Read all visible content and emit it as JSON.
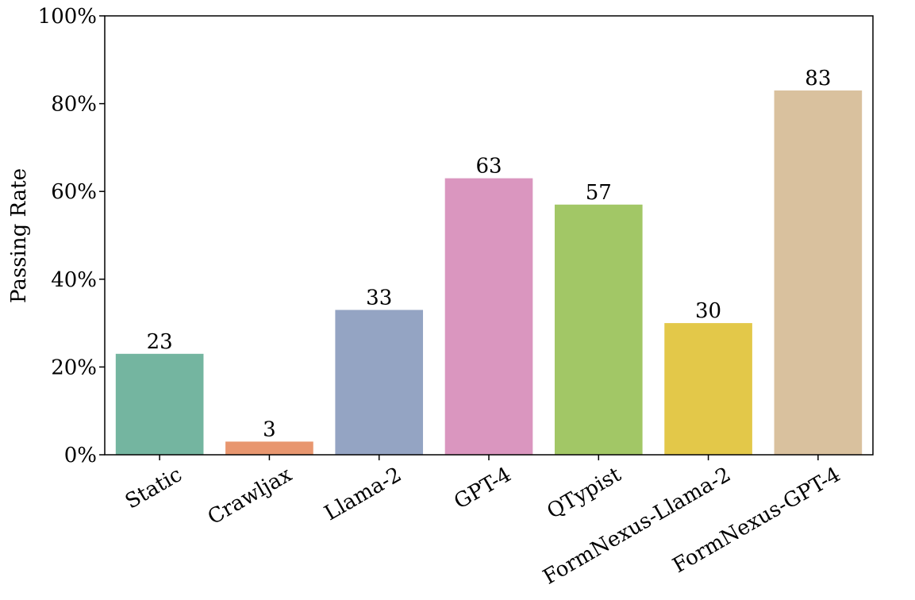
{
  "chart_data": {
    "type": "bar",
    "ylabel": "Passing Rate",
    "categories": [
      "Static",
      "Crawljax",
      "Llama-2",
      "GPT-4",
      "QTypist",
      "FormNexus-Llama-2",
      "FormNexus-GPT-4"
    ],
    "values": [
      23,
      3,
      33,
      63,
      57,
      30,
      83
    ],
    "colors": [
      "#74b5a0",
      "#e8966f",
      "#94a4c3",
      "#da96bf",
      "#a2c766",
      "#e3c849",
      "#d9c19e"
    ],
    "ylim": [
      0,
      100
    ],
    "yticks": [
      {
        "value": 0,
        "label": "0%"
      },
      {
        "value": 20,
        "label": "20%"
      },
      {
        "value": 40,
        "label": "40%"
      },
      {
        "value": 60,
        "label": "60%"
      },
      {
        "value": 80,
        "label": "80%"
      },
      {
        "value": 100,
        "label": "100%"
      }
    ],
    "grid": false
  }
}
